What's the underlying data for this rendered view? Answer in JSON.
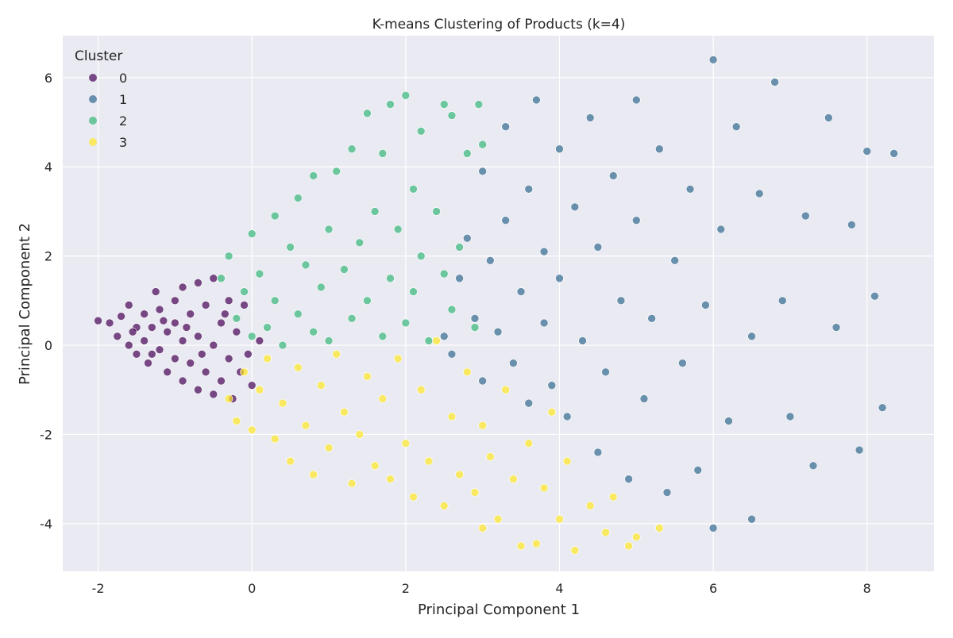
{
  "chart_data": {
    "type": "scatter",
    "title": "K-means Clustering of Products (k=4)",
    "xlabel": "Principal Component 1",
    "ylabel": "Principal Component 2",
    "xlim": [
      -2.46,
      8.87
    ],
    "ylim": [
      -5.07,
      6.94
    ],
    "xticks": [
      -2,
      0,
      2,
      4,
      6,
      8
    ],
    "yticks": [
      -4,
      -2,
      0,
      2,
      4,
      6
    ],
    "grid": true,
    "legend": {
      "title": "Cluster",
      "placement": "top-left"
    },
    "background": "#eaeaf2",
    "series": [
      {
        "name": "0",
        "color": "#440154",
        "points": [
          [
            -2.0,
            0.55
          ],
          [
            -1.85,
            0.5
          ],
          [
            -1.75,
            0.2
          ],
          [
            -1.7,
            0.65
          ],
          [
            -1.6,
            0.9
          ],
          [
            -1.6,
            0.0
          ],
          [
            -1.5,
            0.4
          ],
          [
            -1.5,
            -0.2
          ],
          [
            -1.4,
            0.7
          ],
          [
            -1.4,
            0.1
          ],
          [
            -1.35,
            -0.4
          ],
          [
            -1.3,
            0.4
          ],
          [
            -1.25,
            1.2
          ],
          [
            -1.2,
            -0.1
          ],
          [
            -1.2,
            0.8
          ],
          [
            -1.1,
            0.3
          ],
          [
            -1.1,
            -0.6
          ],
          [
            -1.0,
            1.0
          ],
          [
            -1.0,
            -0.3
          ],
          [
            -1.0,
            0.5
          ],
          [
            -0.9,
            1.3
          ],
          [
            -0.9,
            -0.8
          ],
          [
            -0.9,
            0.1
          ],
          [
            -0.8,
            0.7
          ],
          [
            -0.8,
            -0.4
          ],
          [
            -0.7,
            1.4
          ],
          [
            -0.7,
            -1.0
          ],
          [
            -0.7,
            0.2
          ],
          [
            -0.6,
            0.9
          ],
          [
            -0.6,
            -0.6
          ],
          [
            -0.5,
            1.5
          ],
          [
            -0.5,
            0.0
          ],
          [
            -0.5,
            -1.1
          ],
          [
            -0.4,
            0.5
          ],
          [
            -0.4,
            -0.8
          ],
          [
            -0.3,
            1.0
          ],
          [
            -0.3,
            -0.3
          ],
          [
            -0.25,
            -1.2
          ],
          [
            -0.2,
            0.3
          ],
          [
            -0.15,
            -0.6
          ],
          [
            -0.1,
            0.9
          ],
          [
            -0.05,
            -0.2
          ],
          [
            0.0,
            -0.9
          ],
          [
            0.1,
            0.1
          ],
          [
            -1.3,
            -0.2
          ],
          [
            -1.55,
            0.3
          ],
          [
            -0.85,
            0.4
          ],
          [
            -0.65,
            -0.2
          ],
          [
            -0.35,
            0.7
          ],
          [
            -1.15,
            0.55
          ]
        ]
      },
      {
        "name": "1",
        "color": "#31688e",
        "points": [
          [
            2.5,
            0.2
          ],
          [
            2.6,
            -0.2
          ],
          [
            2.7,
            1.5
          ],
          [
            2.8,
            2.4
          ],
          [
            2.9,
            0.6
          ],
          [
            3.0,
            3.9
          ],
          [
            3.0,
            -0.8
          ],
          [
            3.1,
            1.9
          ],
          [
            3.2,
            0.3
          ],
          [
            3.3,
            4.9
          ],
          [
            3.3,
            2.8
          ],
          [
            3.4,
            -0.4
          ],
          [
            3.5,
            1.2
          ],
          [
            3.6,
            3.5
          ],
          [
            3.6,
            -1.3
          ],
          [
            3.7,
            5.5
          ],
          [
            3.8,
            2.1
          ],
          [
            3.8,
            0.5
          ],
          [
            3.9,
            -0.9
          ],
          [
            4.0,
            4.4
          ],
          [
            4.0,
            1.5
          ],
          [
            4.1,
            -1.6
          ],
          [
            4.2,
            3.1
          ],
          [
            4.3,
            0.1
          ],
          [
            4.4,
            5.1
          ],
          [
            4.5,
            2.2
          ],
          [
            4.5,
            -2.4
          ],
          [
            4.6,
            -0.6
          ],
          [
            4.7,
            3.8
          ],
          [
            4.8,
            1.0
          ],
          [
            4.9,
            -3.0
          ],
          [
            5.0,
            5.5
          ],
          [
            5.0,
            2.8
          ],
          [
            5.1,
            -1.2
          ],
          [
            5.2,
            0.6
          ],
          [
            5.3,
            4.4
          ],
          [
            5.4,
            -3.3
          ],
          [
            5.5,
            1.9
          ],
          [
            5.6,
            -0.4
          ],
          [
            5.7,
            3.5
          ],
          [
            5.8,
            -2.8
          ],
          [
            5.9,
            0.9
          ],
          [
            6.0,
            6.4
          ],
          [
            6.0,
            -4.1
          ],
          [
            6.1,
            2.6
          ],
          [
            6.2,
            -1.7
          ],
          [
            6.3,
            4.9
          ],
          [
            6.5,
            0.2
          ],
          [
            6.5,
            -3.9
          ],
          [
            6.6,
            3.4
          ],
          [
            6.8,
            5.9
          ],
          [
            6.9,
            1.0
          ],
          [
            7.0,
            -1.6
          ],
          [
            7.2,
            2.9
          ],
          [
            7.3,
            -2.7
          ],
          [
            7.5,
            5.1
          ],
          [
            7.6,
            0.4
          ],
          [
            7.8,
            2.7
          ],
          [
            7.9,
            -2.35
          ],
          [
            8.0,
            4.35
          ],
          [
            8.1,
            1.1
          ],
          [
            8.2,
            -1.4
          ],
          [
            8.35,
            4.3
          ]
        ]
      },
      {
        "name": "2",
        "color": "#35b779",
        "points": [
          [
            -0.4,
            1.5
          ],
          [
            -0.3,
            2.0
          ],
          [
            -0.2,
            0.6
          ],
          [
            -0.1,
            1.2
          ],
          [
            0.0,
            2.5
          ],
          [
            0.0,
            0.2
          ],
          [
            0.1,
            1.6
          ],
          [
            0.2,
            0.4
          ],
          [
            0.3,
            2.9
          ],
          [
            0.3,
            1.0
          ],
          [
            0.4,
            0.0
          ],
          [
            0.5,
            2.2
          ],
          [
            0.6,
            3.3
          ],
          [
            0.6,
            0.7
          ],
          [
            0.7,
            1.8
          ],
          [
            0.8,
            3.8
          ],
          [
            0.8,
            0.3
          ],
          [
            0.9,
            1.3
          ],
          [
            1.0,
            2.6
          ],
          [
            1.0,
            0.1
          ],
          [
            1.1,
            3.9
          ],
          [
            1.2,
            1.7
          ],
          [
            1.3,
            4.4
          ],
          [
            1.3,
            0.6
          ],
          [
            1.4,
            2.3
          ],
          [
            1.5,
            5.2
          ],
          [
            1.5,
            1.0
          ],
          [
            1.6,
            3.0
          ],
          [
            1.7,
            0.2
          ],
          [
            1.7,
            4.3
          ],
          [
            1.8,
            1.5
          ],
          [
            1.8,
            5.4
          ],
          [
            1.9,
            2.6
          ],
          [
            2.0,
            0.5
          ],
          [
            2.0,
            5.6
          ],
          [
            2.1,
            3.5
          ],
          [
            2.1,
            1.2
          ],
          [
            2.2,
            4.8
          ],
          [
            2.2,
            2.0
          ],
          [
            2.3,
            0.1
          ],
          [
            2.4,
            3.0
          ],
          [
            2.5,
            5.4
          ],
          [
            2.5,
            1.6
          ],
          [
            2.6,
            5.15
          ],
          [
            2.6,
            0.8
          ],
          [
            2.7,
            2.2
          ],
          [
            2.8,
            4.3
          ],
          [
            2.9,
            0.4
          ],
          [
            2.95,
            5.4
          ],
          [
            3.0,
            4.5
          ]
        ]
      },
      {
        "name": "3",
        "color": "#fde725",
        "points": [
          [
            -0.3,
            -1.2
          ],
          [
            -0.2,
            -1.7
          ],
          [
            -0.1,
            -0.6
          ],
          [
            0.0,
            -1.9
          ],
          [
            0.1,
            -1.0
          ],
          [
            0.2,
            -0.3
          ],
          [
            0.3,
            -2.1
          ],
          [
            0.4,
            -1.3
          ],
          [
            0.5,
            -2.6
          ],
          [
            0.6,
            -0.5
          ],
          [
            0.7,
            -1.8
          ],
          [
            0.8,
            -2.9
          ],
          [
            0.9,
            -0.9
          ],
          [
            1.0,
            -2.3
          ],
          [
            1.1,
            -0.2
          ],
          [
            1.2,
            -1.5
          ],
          [
            1.3,
            -3.1
          ],
          [
            1.4,
            -2.0
          ],
          [
            1.5,
            -0.7
          ],
          [
            1.6,
            -2.7
          ],
          [
            1.7,
            -1.2
          ],
          [
            1.8,
            -3.0
          ],
          [
            1.9,
            -0.3
          ],
          [
            2.0,
            -2.2
          ],
          [
            2.1,
            -3.4
          ],
          [
            2.2,
            -1.0
          ],
          [
            2.3,
            -2.6
          ],
          [
            2.4,
            0.1
          ],
          [
            2.5,
            -3.6
          ],
          [
            2.6,
            -1.6
          ],
          [
            2.7,
            -2.9
          ],
          [
            2.8,
            -0.6
          ],
          [
            2.9,
            -3.3
          ],
          [
            3.0,
            -4.1
          ],
          [
            3.0,
            -1.8
          ],
          [
            3.1,
            -2.5
          ],
          [
            3.2,
            -3.9
          ],
          [
            3.3,
            -1.0
          ],
          [
            3.4,
            -3.0
          ],
          [
            3.5,
            -4.5
          ],
          [
            3.6,
            -2.2
          ],
          [
            3.7,
            -4.45
          ],
          [
            3.8,
            -3.2
          ],
          [
            3.9,
            -1.5
          ],
          [
            4.0,
            -3.9
          ],
          [
            4.1,
            -2.6
          ],
          [
            4.2,
            -4.6
          ],
          [
            4.4,
            -3.6
          ],
          [
            4.6,
            -4.2
          ],
          [
            4.7,
            -3.4
          ],
          [
            4.9,
            -4.5
          ],
          [
            5.0,
            -4.3
          ],
          [
            5.3,
            -4.1
          ]
        ]
      }
    ]
  }
}
